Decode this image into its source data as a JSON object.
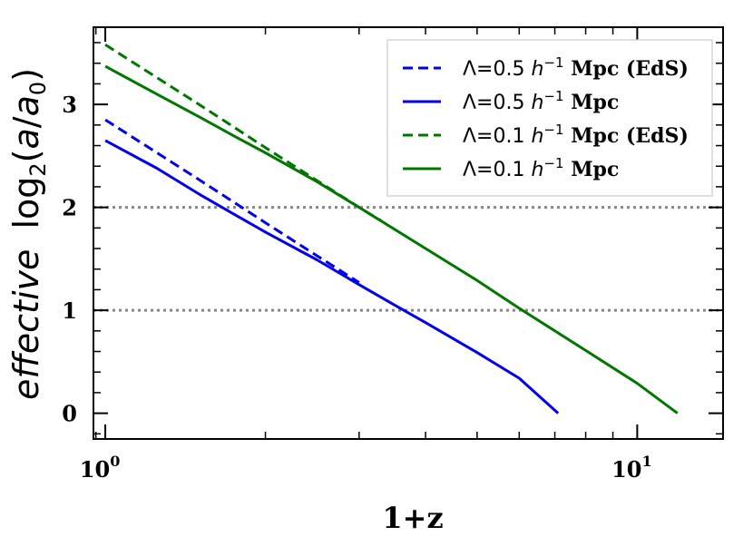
{
  "chart_data": {
    "type": "line",
    "xscale": "log",
    "xlim": [
      0.95,
      14.5
    ],
    "ylim": [
      -0.25,
      3.75
    ],
    "xlabel": "1+z",
    "ylabel": {
      "italic": "effective",
      "plain": "log",
      "sub": "2",
      "paren_open": "(",
      "num": "a",
      "slash": "/",
      "den": "a",
      "den_sub": "0",
      "paren_close": ")"
    },
    "yticks": [
      0,
      1,
      2,
      3
    ],
    "ytick_labels": [
      "0",
      "1",
      "2",
      "3"
    ],
    "xtick_labels": [
      {
        "base": "10",
        "exp": "0",
        "value": 1
      },
      {
        "base": "10",
        "exp": "1",
        "value": 10
      }
    ],
    "hlines": [
      1,
      2
    ],
    "hline_color": "#888888",
    "series": [
      {
        "name": "Λ=0.5 h⁻¹ Mpc (EdS)",
        "label_prefix": "Λ=0.5 ",
        "label_h": "h",
        "label_exp": "−1",
        "label_suffix": " Mpc (EdS)",
        "color": "#0000ee",
        "style": "dashed",
        "x": [
          1.0,
          1.5,
          2.0,
          2.5,
          3.0
        ],
        "y": [
          2.85,
          2.27,
          1.85,
          1.53,
          1.27
        ]
      },
      {
        "name": "Λ=0.5 h⁻¹ Mpc",
        "label_prefix": "Λ=0.5 ",
        "label_h": "h",
        "label_exp": "−1",
        "label_suffix": " Mpc",
        "color": "#0000ee",
        "style": "solid",
        "x": [
          1.0,
          1.25,
          1.5,
          1.75,
          2.0,
          2.5,
          3.0,
          3.5,
          4.0,
          5.0,
          6.0,
          7.1
        ],
        "y": [
          2.65,
          2.38,
          2.13,
          1.93,
          1.76,
          1.49,
          1.25,
          1.05,
          0.88,
          0.59,
          0.34,
          0.0
        ]
      },
      {
        "name": "Λ=0.1 h⁻¹ Mpc (EdS)",
        "label_prefix": "Λ=0.1 ",
        "label_h": "h",
        "label_exp": "−1",
        "label_suffix": " Mpc (EdS)",
        "color": "#007700",
        "style": "dashed",
        "x": [
          1.0,
          1.5,
          2.0,
          2.5,
          3.0,
          3.3
        ],
        "y": [
          3.58,
          3.0,
          2.58,
          2.26,
          2.0,
          1.87
        ]
      },
      {
        "name": "Λ=0.1 h⁻¹ Mpc",
        "label_prefix": "Λ=0.1 ",
        "label_h": "h",
        "label_exp": "−1",
        "label_suffix": " Mpc",
        "color": "#007700",
        "style": "solid",
        "x": [
          1.0,
          1.25,
          1.5,
          1.75,
          2.0,
          2.5,
          3.0,
          4.0,
          5.0,
          6.0,
          8.0,
          10.0,
          11.9
        ],
        "y": [
          3.37,
          3.1,
          2.88,
          2.69,
          2.53,
          2.25,
          2.0,
          1.6,
          1.29,
          1.02,
          0.61,
          0.29,
          0.0
        ]
      }
    ],
    "legend_location": "top-right"
  }
}
